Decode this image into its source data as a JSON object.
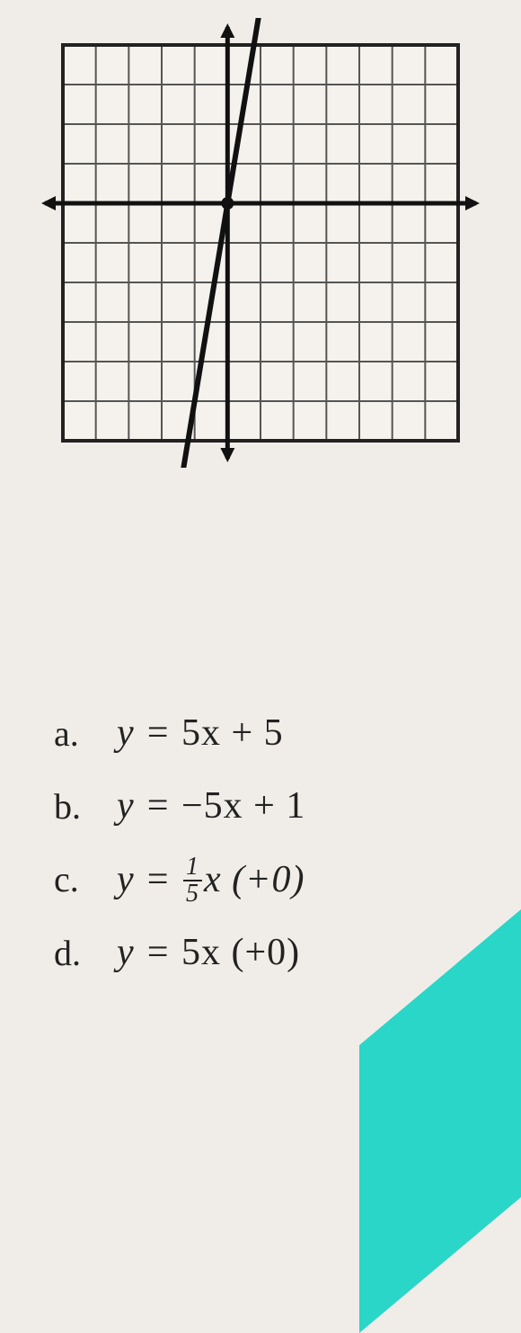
{
  "graph": {
    "type": "line",
    "grid_cols": 12,
    "grid_rows": 10,
    "grid_color": "#555",
    "grid_linewidth": 2,
    "border_color": "#222",
    "border_linewidth": 4,
    "axis_color": "#111",
    "axis_linewidth": 5,
    "background_color": "#f5f2ed",
    "origin_col": 5,
    "origin_row": 4,
    "x_arrow": true,
    "y_arrow": true,
    "line": {
      "slope": 5,
      "intercept": 0,
      "points": [
        {
          "x": 0,
          "y": 0
        },
        {
          "x": 1,
          "y": 5
        }
      ],
      "color": "#111",
      "linewidth": 6,
      "arrows": true,
      "marker_color": "#111",
      "marker_radius": 7
    }
  },
  "options": {
    "a": {
      "letter": "a.",
      "prefix": "y = ",
      "body": "5x + 5"
    },
    "b": {
      "letter": "b.",
      "prefix": "y = ",
      "body": "−5x + 1"
    },
    "c": {
      "letter": "c.",
      "prefix": "y = ",
      "frac_num": "1",
      "frac_den": "5",
      "suffix": "x (+0)"
    },
    "d": {
      "letter": "d.",
      "prefix": "y = ",
      "body": "5x (+0)"
    }
  },
  "accent_color": "#2ad6c7"
}
